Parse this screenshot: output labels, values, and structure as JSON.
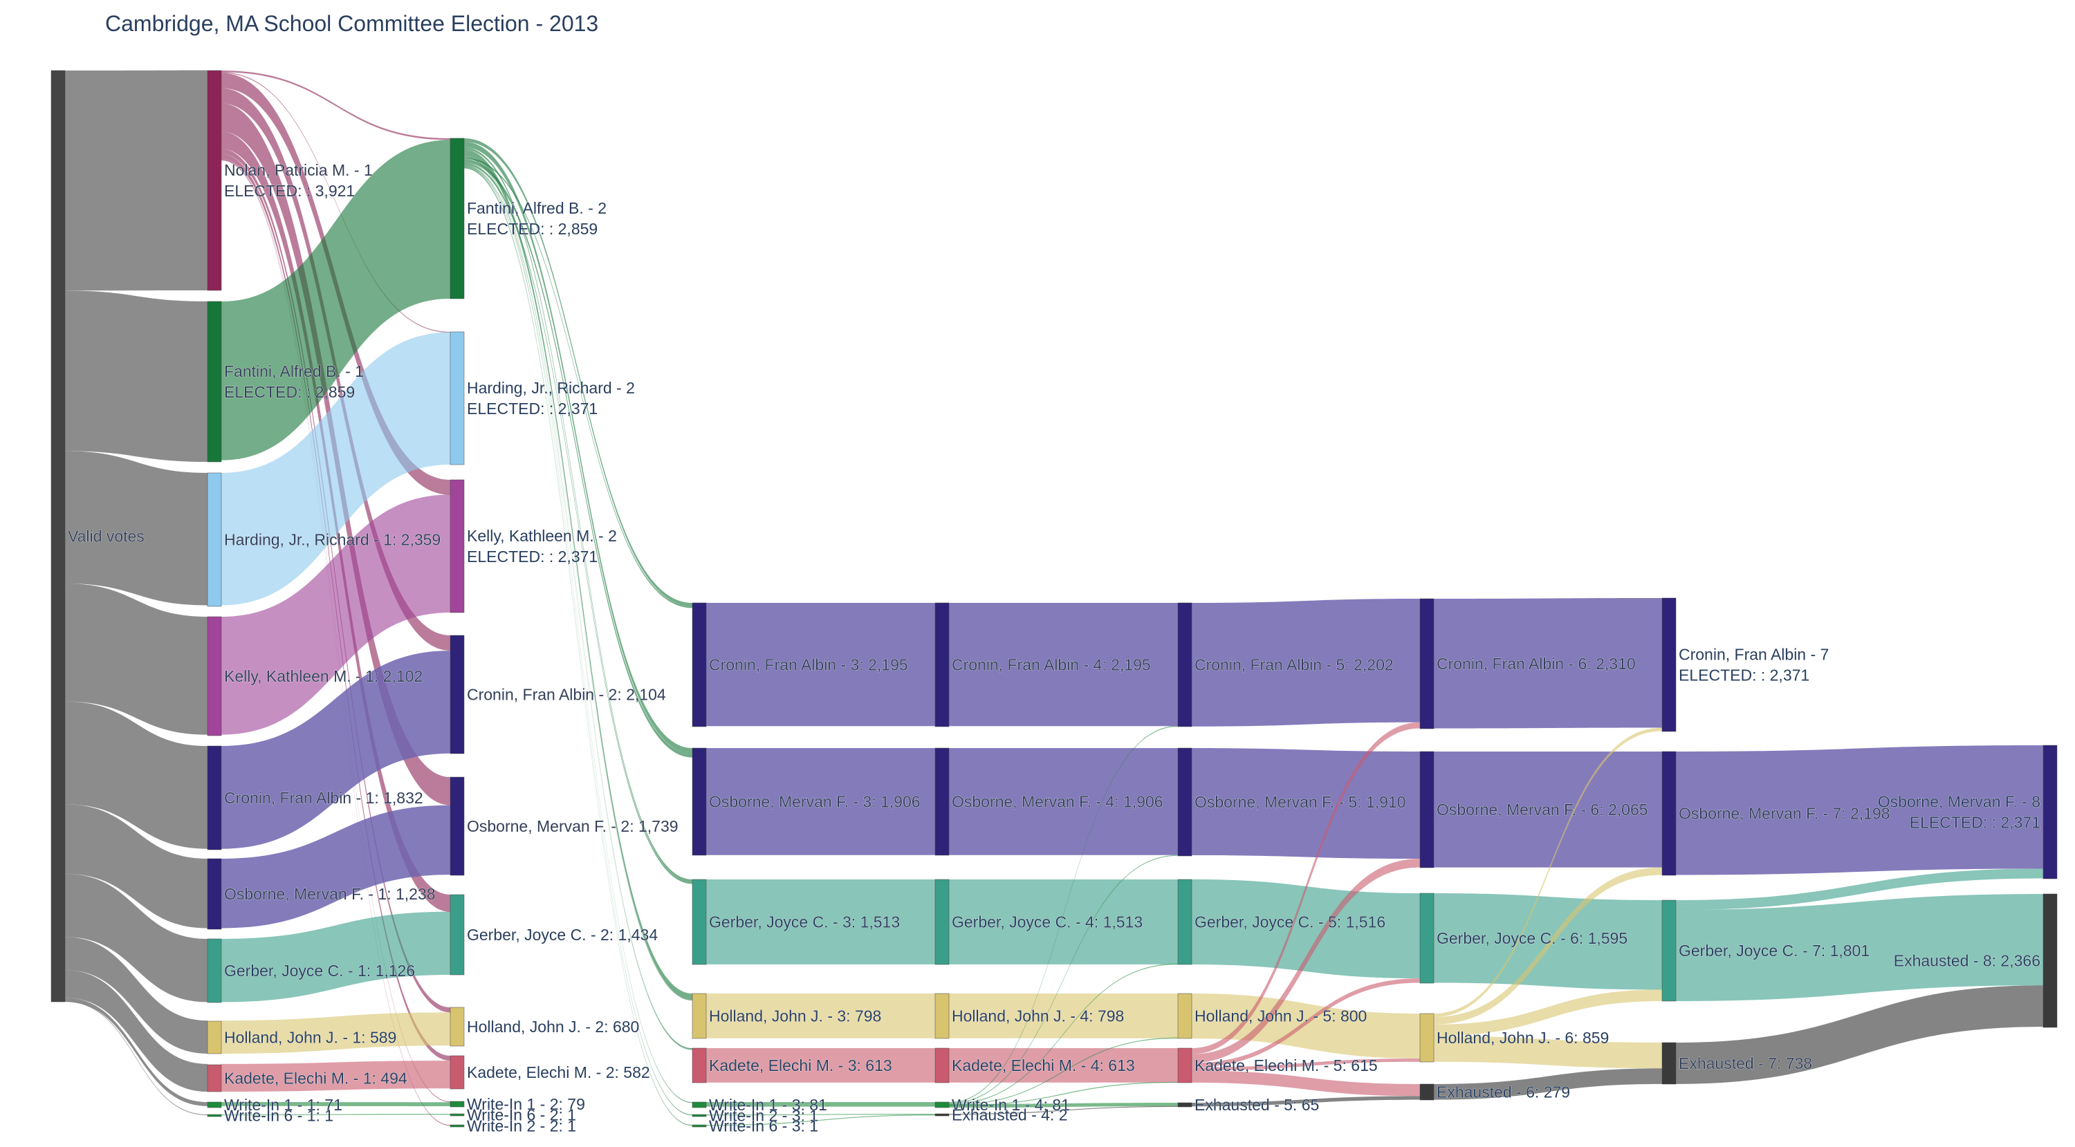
{
  "title": "Cambridge, MA School Committee Election - 2013",
  "colors": {
    "valid": "#454545",
    "nolan": "#8c2457",
    "fantini": "#17773a",
    "harding": "#8ecaed",
    "kelly": "#a0459a",
    "cronin": "#2e2378",
    "osborne": "#2e2378",
    "gerber": "#3b9e8a",
    "holland": "#d8c46e",
    "kadete": "#c95b6e",
    "writein": "#1f8a3d",
    "exhausted": "#3a3a3a"
  },
  "chart_data": {
    "type": "sankey",
    "nodes": [
      {
        "id": "valid",
        "lines": [
          "Valid votes"
        ],
        "color_key": "valid"
      },
      {
        "id": "nolan1",
        "lines": [
          "Nolan, Patricia M. - 1",
          "ELECTED: : 3,921"
        ],
        "color_key": "nolan"
      },
      {
        "id": "fantini1",
        "lines": [
          "Fantini, Alfred B. - 1",
          "ELECTED: : 2,859"
        ],
        "color_key": "fantini"
      },
      {
        "id": "harding1",
        "lines": [
          "Harding, Jr., Richard - 1: 2,359"
        ],
        "color_key": "harding"
      },
      {
        "id": "kelly1",
        "lines": [
          "Kelly, Kathleen M. - 1: 2,102"
        ],
        "color_key": "kelly"
      },
      {
        "id": "cronin1",
        "lines": [
          "Cronin, Fran Albin - 1: 1,832"
        ],
        "color_key": "cronin"
      },
      {
        "id": "osborne1",
        "lines": [
          "Osborne, Mervan F. - 1: 1,238"
        ],
        "color_key": "osborne"
      },
      {
        "id": "gerber1",
        "lines": [
          "Gerber, Joyce C. - 1: 1,126"
        ],
        "color_key": "gerber"
      },
      {
        "id": "holland1",
        "lines": [
          "Holland, John J. - 1: 589"
        ],
        "color_key": "holland"
      },
      {
        "id": "kadete1",
        "lines": [
          "Kadete, Elechi M. - 1: 494"
        ],
        "color_key": "kadete"
      },
      {
        "id": "wi1_1",
        "lines": [
          "Write-In 1 - 1: 71"
        ],
        "color_key": "writein"
      },
      {
        "id": "wi6_1",
        "lines": [
          "Write-In 6 - 1: 1"
        ],
        "color_key": "writein"
      },
      {
        "id": "fantini2",
        "lines": [
          "Fantini, Alfred B. - 2",
          "ELECTED: : 2,859"
        ],
        "color_key": "fantini"
      },
      {
        "id": "harding2",
        "lines": [
          "Harding, Jr., Richard - 2",
          "ELECTED: : 2,371"
        ],
        "color_key": "harding"
      },
      {
        "id": "kelly2",
        "lines": [
          "Kelly, Kathleen M. - 2",
          "ELECTED: : 2,371"
        ],
        "color_key": "kelly"
      },
      {
        "id": "cronin2",
        "lines": [
          "Cronin, Fran Albin - 2: 2,104"
        ],
        "color_key": "cronin"
      },
      {
        "id": "osborne2",
        "lines": [
          "Osborne, Mervan F. - 2: 1,739"
        ],
        "color_key": "osborne"
      },
      {
        "id": "gerber2",
        "lines": [
          "Gerber, Joyce C. - 2: 1,434"
        ],
        "color_key": "gerber"
      },
      {
        "id": "holland2",
        "lines": [
          "Holland, John J. - 2: 680"
        ],
        "color_key": "holland"
      },
      {
        "id": "kadete2",
        "lines": [
          "Kadete, Elechi M. - 2: 582"
        ],
        "color_key": "kadete"
      },
      {
        "id": "wi1_2",
        "lines": [
          "Write-In 1 - 2: 79"
        ],
        "color_key": "writein"
      },
      {
        "id": "wi6_2",
        "lines": [
          "Write-In 6 - 2: 1"
        ],
        "color_key": "writein"
      },
      {
        "id": "wi2_2",
        "lines": [
          "Write-In 2 - 2: 1"
        ],
        "color_key": "writein"
      },
      {
        "id": "cronin3",
        "lines": [
          "Cronin, Fran Albin - 3: 2,195"
        ],
        "color_key": "cronin"
      },
      {
        "id": "osborne3",
        "lines": [
          "Osborne, Mervan F. - 3: 1,906"
        ],
        "color_key": "osborne"
      },
      {
        "id": "gerber3",
        "lines": [
          "Gerber, Joyce C. - 3: 1,513"
        ],
        "color_key": "gerber"
      },
      {
        "id": "holland3",
        "lines": [
          "Holland, John J. - 3: 798"
        ],
        "color_key": "holland"
      },
      {
        "id": "kadete3",
        "lines": [
          "Kadete, Elechi M. - 3: 613"
        ],
        "color_key": "kadete"
      },
      {
        "id": "wi1_3",
        "lines": [
          "Write-In 1 - 3: 81"
        ],
        "color_key": "writein"
      },
      {
        "id": "wi2_3",
        "lines": [
          "Write-In 2 - 3: 1"
        ],
        "color_key": "writein"
      },
      {
        "id": "wi6_3",
        "lines": [
          "Write-In 6 - 3: 1"
        ],
        "color_key": "writein"
      },
      {
        "id": "cronin4",
        "lines": [
          "Cronin, Fran Albin - 4: 2,195"
        ],
        "color_key": "cronin"
      },
      {
        "id": "osborne4",
        "lines": [
          "Osborne, Mervan F. - 4: 1,906"
        ],
        "color_key": "osborne"
      },
      {
        "id": "gerber4",
        "lines": [
          "Gerber, Joyce C. - 4: 1,513"
        ],
        "color_key": "gerber"
      },
      {
        "id": "holland4",
        "lines": [
          "Holland, John J. - 4: 798"
        ],
        "color_key": "holland"
      },
      {
        "id": "kadete4",
        "lines": [
          "Kadete, Elechi M. - 4: 613"
        ],
        "color_key": "kadete"
      },
      {
        "id": "wi1_4",
        "lines": [
          "Write-In 1 - 4: 81"
        ],
        "color_key": "writein"
      },
      {
        "id": "exh4",
        "lines": [
          "Exhausted - 4: 2"
        ],
        "color_key": "exhausted"
      },
      {
        "id": "cronin5",
        "lines": [
          "Cronin, Fran Albin - 5: 2,202"
        ],
        "color_key": "cronin"
      },
      {
        "id": "osborne5",
        "lines": [
          "Osborne, Mervan F. - 5: 1,910"
        ],
        "color_key": "osborne"
      },
      {
        "id": "gerber5",
        "lines": [
          "Gerber, Joyce C. - 5: 1,516"
        ],
        "color_key": "gerber"
      },
      {
        "id": "holland5",
        "lines": [
          "Holland, John J. - 5: 800"
        ],
        "color_key": "holland"
      },
      {
        "id": "kadete5",
        "lines": [
          "Kadete, Elechi M. - 5: 615"
        ],
        "color_key": "kadete"
      },
      {
        "id": "exh5",
        "lines": [
          "Exhausted - 5: 65"
        ],
        "color_key": "exhausted"
      },
      {
        "id": "cronin6",
        "lines": [
          "Cronin, Fran Albin - 6: 2,310"
        ],
        "color_key": "cronin"
      },
      {
        "id": "osborne6",
        "lines": [
          "Osborne, Mervan F. - 6: 2,065"
        ],
        "color_key": "osborne"
      },
      {
        "id": "gerber6",
        "lines": [
          "Gerber, Joyce C. - 6: 1,595"
        ],
        "color_key": "gerber"
      },
      {
        "id": "holland6",
        "lines": [
          "Holland, John J. - 6: 859"
        ],
        "color_key": "holland"
      },
      {
        "id": "exh6",
        "lines": [
          "Exhausted - 6: 279"
        ],
        "color_key": "exhausted"
      },
      {
        "id": "cronin7",
        "lines": [
          "Cronin, Fran Albin - 7",
          "ELECTED: : 2,371"
        ],
        "color_key": "cronin"
      },
      {
        "id": "osborne7",
        "lines": [
          "Osborne, Mervan F. - 7: 2,198"
        ],
        "color_key": "osborne"
      },
      {
        "id": "gerber7",
        "lines": [
          "Gerber, Joyce C. - 7: 1,801"
        ],
        "color_key": "gerber"
      },
      {
        "id": "exh7",
        "lines": [
          "Exhausted - 7: 738"
        ],
        "color_key": "exhausted"
      },
      {
        "id": "osborne8",
        "lines": [
          "Osborne, Mervan F. - 8",
          "ELECTED: : 2,371"
        ],
        "color_key": "osborne"
      },
      {
        "id": "exh8",
        "lines": [
          "Exhausted - 8: 2,366"
        ],
        "color_key": "exhausted"
      }
    ],
    "links": [
      [
        "valid",
        "nolan1",
        3921
      ],
      [
        "valid",
        "fantini1",
        2859
      ],
      [
        "valid",
        "harding1",
        2359
      ],
      [
        "valid",
        "kelly1",
        2102
      ],
      [
        "valid",
        "cronin1",
        1832
      ],
      [
        "valid",
        "osborne1",
        1238
      ],
      [
        "valid",
        "gerber1",
        1126
      ],
      [
        "valid",
        "holland1",
        589
      ],
      [
        "valid",
        "kadete1",
        494
      ],
      [
        "valid",
        "wi1_1",
        71
      ],
      [
        "valid",
        "wi6_1",
        1
      ],
      [
        "nolan1",
        "fantini2",
        30
      ],
      [
        "nolan1",
        "harding2",
        12
      ],
      [
        "nolan1",
        "kelly2",
        269
      ],
      [
        "nolan1",
        "cronin2",
        272
      ],
      [
        "nolan1",
        "osborne2",
        501
      ],
      [
        "nolan1",
        "gerber2",
        308
      ],
      [
        "nolan1",
        "holland2",
        91
      ],
      [
        "nolan1",
        "kadete2",
        88
      ],
      [
        "nolan1",
        "wi1_2",
        8
      ],
      [
        "nolan1",
        "wi2_2",
        1
      ],
      [
        "fantini1",
        "fantini2",
        2829
      ],
      [
        "harding1",
        "harding2",
        2359
      ],
      [
        "kelly1",
        "kelly2",
        2102
      ],
      [
        "cronin1",
        "cronin2",
        1832
      ],
      [
        "osborne1",
        "osborne2",
        1238
      ],
      [
        "gerber1",
        "gerber2",
        1126
      ],
      [
        "holland1",
        "holland2",
        589
      ],
      [
        "kadete1",
        "kadete2",
        494
      ],
      [
        "wi1_1",
        "wi1_2",
        71
      ],
      [
        "wi6_1",
        "wi6_2",
        1
      ],
      [
        "fantini2",
        "cronin3",
        62
      ],
      [
        "fantini2",
        "osborne3",
        100
      ],
      [
        "fantini2",
        "gerber3",
        40
      ],
      [
        "fantini2",
        "holland3",
        110
      ],
      [
        "fantini2",
        "kadete3",
        15
      ],
      [
        "fantini2",
        "wi1_3",
        1
      ],
      [
        "fantini2",
        "cronin3",
        29
      ],
      [
        "fantini2",
        "osborne3",
        67
      ],
      [
        "fantini2",
        "gerber3",
        39
      ],
      [
        "fantini2",
        "holland3",
        8
      ],
      [
        "fantini2",
        "kadete3",
        16
      ],
      [
        "fantini2",
        "wi2_3",
        1
      ],
      [
        "fantini2",
        "wi6_3",
        1
      ],
      [
        "cronin3",
        "cronin4",
        2195
      ],
      [
        "osborne3",
        "osborne4",
        1906
      ],
      [
        "gerber3",
        "gerber4",
        1513
      ],
      [
        "holland3",
        "holland4",
        798
      ],
      [
        "kadete3",
        "kadete4",
        613
      ],
      [
        "wi1_3",
        "wi1_4",
        81
      ],
      [
        "wi2_3",
        "exh4",
        1
      ],
      [
        "wi6_3",
        "exh4",
        1
      ],
      [
        "cronin4",
        "cronin5",
        2195
      ],
      [
        "osborne4",
        "osborne5",
        1906
      ],
      [
        "gerber4",
        "gerber5",
        1513
      ],
      [
        "holland4",
        "holland5",
        798
      ],
      [
        "kadete4",
        "kadete5",
        613
      ],
      [
        "wi1_4",
        "cronin5",
        7
      ],
      [
        "wi1_4",
        "osborne5",
        4
      ],
      [
        "wi1_4",
        "gerber5",
        3
      ],
      [
        "wi1_4",
        "holland5",
        2
      ],
      [
        "wi1_4",
        "kadete5",
        2
      ],
      [
        "wi1_4",
        "exh5",
        63
      ],
      [
        "exh4",
        "exh5",
        2
      ],
      [
        "cronin5",
        "cronin6",
        2202
      ],
      [
        "osborne5",
        "osborne6",
        1910
      ],
      [
        "gerber5",
        "gerber6",
        1516
      ],
      [
        "holland5",
        "holland6",
        800
      ],
      [
        "kadete5",
        "cronin6",
        108
      ],
      [
        "kadete5",
        "osborne6",
        155
      ],
      [
        "kadete5",
        "gerber6",
        79
      ],
      [
        "kadete5",
        "holland6",
        59
      ],
      [
        "kadete5",
        "exh6",
        214
      ],
      [
        "exh5",
        "exh6",
        65
      ],
      [
        "cronin6",
        "cronin7",
        2310
      ],
      [
        "osborne6",
        "osborne7",
        2065
      ],
      [
        "gerber6",
        "gerber7",
        1595
      ],
      [
        "holland6",
        "cronin7",
        61
      ],
      [
        "holland6",
        "osborne7",
        133
      ],
      [
        "holland6",
        "gerber7",
        206
      ],
      [
        "holland6",
        "exh7",
        459
      ],
      [
        "exh6",
        "exh7",
        279
      ],
      [
        "osborne7",
        "osborne8",
        2198
      ],
      [
        "gerber7",
        "osborne8",
        173
      ],
      [
        "gerber7",
        "exh8",
        1628
      ],
      [
        "exh7",
        "exh8",
        738
      ]
    ]
  }
}
